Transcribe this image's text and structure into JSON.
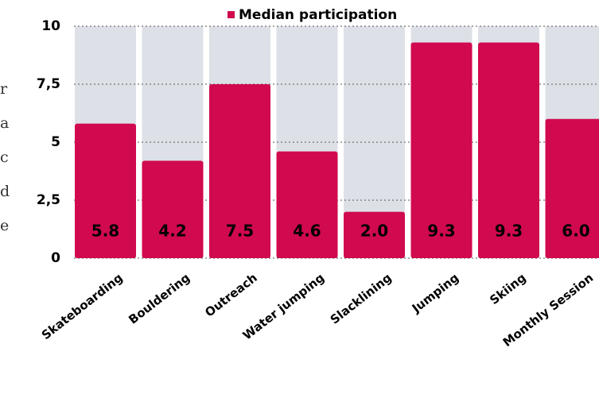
{
  "chart_data": {
    "type": "bar",
    "legend": "Median participation",
    "categories": [
      "Skateboarding",
      "Bouldering",
      "Outreach",
      "Water jumping",
      "Slacklining",
      "Jumping",
      "Skiing",
      "Monthly Session"
    ],
    "values": [
      5.8,
      4.2,
      7.5,
      4.6,
      2.0,
      9.3,
      9.3,
      6.0
    ],
    "value_labels": [
      "5.8",
      "4.2",
      "7.5",
      "4.6",
      "2.0",
      "9.3",
      "9.3",
      "6.0"
    ],
    "color": "#d1094f",
    "ylim": [
      0,
      10
    ],
    "yticks": [
      0,
      {
        "value": 2.5,
        "label": "2,5"
      },
      5,
      {
        "value": 7.5,
        "label": "7,5"
      },
      10
    ]
  },
  "side_text": [
    "r",
    "a",
    "c",
    "d",
    "e"
  ]
}
